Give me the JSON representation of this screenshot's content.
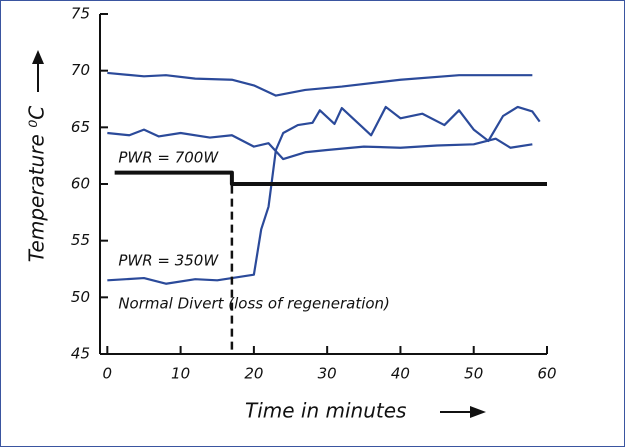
{
  "chart_data": {
    "type": "line",
    "y_label": "Temperature ⁰C",
    "x_label": "Time in minutes",
    "xlim": [
      -1,
      60
    ],
    "xticks": [
      0,
      10,
      20,
      30,
      40,
      50,
      60
    ],
    "ylim": [
      45,
      75
    ],
    "yticks": [
      45,
      50,
      55,
      60,
      65,
      70,
      75
    ],
    "series": [
      {
        "color": "#2b4a9a",
        "x": [
          0,
          5,
          8,
          12,
          17,
          20,
          23,
          27,
          32,
          40,
          48,
          58
        ],
        "values": [
          69.8,
          69.5,
          69.6,
          69.3,
          69.2,
          68.7,
          67.8,
          68.3,
          68.6,
          69.2,
          69.6,
          69.6
        ]
      },
      {
        "color": "#2b4a9a",
        "x": [
          0,
          3,
          5,
          7,
          10,
          14,
          17,
          20,
          22,
          24,
          27,
          30,
          35,
          40,
          45,
          50,
          53,
          55,
          58
        ],
        "values": [
          64.5,
          64.3,
          64.8,
          64.2,
          64.5,
          64.1,
          64.3,
          63.3,
          63.6,
          62.2,
          62.8,
          63,
          63.3,
          63.2,
          63.4,
          63.5,
          64,
          63.2,
          63.5
        ]
      },
      {
        "color": "#2b4a9a",
        "x": [
          0,
          5,
          8,
          12,
          15,
          18,
          20,
          21,
          22,
          23,
          24,
          26,
          28,
          29,
          31,
          32,
          34,
          36,
          38,
          40,
          43,
          46,
          48,
          50,
          52,
          54,
          56,
          58,
          59
        ],
        "values": [
          51.5,
          51.7,
          51.2,
          51.6,
          51.5,
          51.8,
          52,
          56,
          58,
          63,
          64.5,
          65.2,
          65.4,
          66.5,
          65.3,
          66.7,
          65.5,
          64.3,
          66.8,
          65.8,
          66.2,
          65.2,
          66.5,
          64.8,
          63.8,
          66,
          66.8,
          66.4,
          65.5
        ]
      },
      {
        "color": "#111111",
        "x": [
          1,
          17,
          17,
          60
        ],
        "values": [
          61,
          61,
          60,
          60
        ]
      }
    ],
    "vlines": [
      17
    ],
    "annotations": [
      {
        "text": "PWR = 700W",
        "x": 1.5,
        "y": 62.3
      },
      {
        "text": "PWR = 350W",
        "x": 1.5,
        "y": 53.2
      },
      {
        "text": "Normal Divert (loss of regeneration)",
        "x": 1.5,
        "y": 49.4
      }
    ]
  }
}
